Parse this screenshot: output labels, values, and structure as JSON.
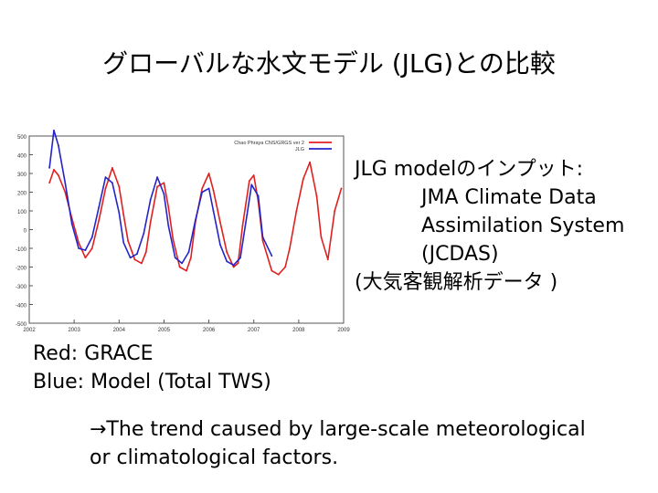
{
  "slide": {
    "title": "グローバルな水文モデル (JLG)との比較",
    "info": {
      "line1": "JLG modelのインプット:",
      "line2": "JMA Climate Data",
      "line3": "Assimilation System",
      "line4": "(JCDAS)",
      "line5": "(大気客観解析データ )"
    },
    "legend_text": {
      "red": "Red: GRACE",
      "blue": "Blue: Model (Total TWS)"
    },
    "conclusion": {
      "line1": "→The trend caused by large-scale meteorological",
      "line2": "or climatological factors."
    }
  },
  "colors": {
    "grace": "#e02020",
    "model": "#2424c8",
    "axis": "#555555"
  },
  "chart_data": {
    "type": "line",
    "title": "",
    "xlabel": "",
    "ylabel": "",
    "xlim": [
      2002,
      2009
    ],
    "ylim": [
      -500,
      500
    ],
    "xticks": [
      2002,
      2003,
      2004,
      2005,
      2006,
      2007,
      2008,
      2009
    ],
    "yticks": [
      500,
      400,
      300,
      200,
      100,
      0,
      -100,
      -200,
      -300,
      -400,
      -500
    ],
    "legend": [
      "Chao Phraya CNS/GRGS ver 2",
      "JLG"
    ],
    "series": [
      {
        "name": "Chao Phraya CNS/GRGS ver 2",
        "color": "#e02020",
        "x": [
          2002.45,
          2002.55,
          2002.65,
          2002.8,
          2002.95,
          2003.1,
          2003.25,
          2003.4,
          2003.55,
          2003.7,
          2003.85,
          2004.0,
          2004.1,
          2004.2,
          2004.35,
          2004.5,
          2004.6,
          2004.7,
          2004.85,
          2005.0,
          2005.1,
          2005.2,
          2005.35,
          2005.5,
          2005.6,
          2005.7,
          2005.85,
          2006.0,
          2006.1,
          2006.25,
          2006.4,
          2006.55,
          2006.65,
          2006.75,
          2006.9,
          2007.0,
          2007.1,
          2007.2,
          2007.4,
          2007.55,
          2007.7,
          2007.8,
          2007.95,
          2008.1,
          2008.25,
          2008.4,
          2008.5,
          2008.65,
          2008.8,
          2008.95
        ],
        "y": [
          250,
          320,
          290,
          200,
          60,
          -70,
          -150,
          -100,
          50,
          220,
          330,
          230,
          80,
          -60,
          -160,
          -180,
          -120,
          40,
          230,
          250,
          120,
          -50,
          -200,
          -220,
          -150,
          40,
          220,
          300,
          210,
          40,
          -120,
          -200,
          -180,
          20,
          260,
          290,
          150,
          -60,
          -220,
          -240,
          -200,
          -100,
          100,
          270,
          360,
          180,
          -40,
          -160,
          100,
          220
        ]
      },
      {
        "name": "JLG",
        "color": "#2424c8",
        "x": [
          2002.45,
          2002.55,
          2002.65,
          2002.8,
          2002.95,
          2003.1,
          2003.25,
          2003.4,
          2003.55,
          2003.7,
          2003.85,
          2004.0,
          2004.1,
          2004.25,
          2004.4,
          2004.55,
          2004.7,
          2004.85,
          2005.0,
          2005.1,
          2005.25,
          2005.4,
          2005.55,
          2005.7,
          2005.85,
          2006.0,
          2006.1,
          2006.25,
          2006.4,
          2006.55,
          2006.7,
          2006.85,
          2006.95,
          2007.1,
          2007.2,
          2007.4
        ],
        "y": [
          330,
          530,
          450,
          250,
          30,
          -100,
          -110,
          -40,
          120,
          280,
          250,
          90,
          -70,
          -150,
          -130,
          -20,
          160,
          280,
          190,
          20,
          -150,
          -180,
          -120,
          50,
          200,
          220,
          100,
          -80,
          -170,
          -190,
          -150,
          80,
          240,
          180,
          -40,
          -140
        ]
      }
    ]
  }
}
